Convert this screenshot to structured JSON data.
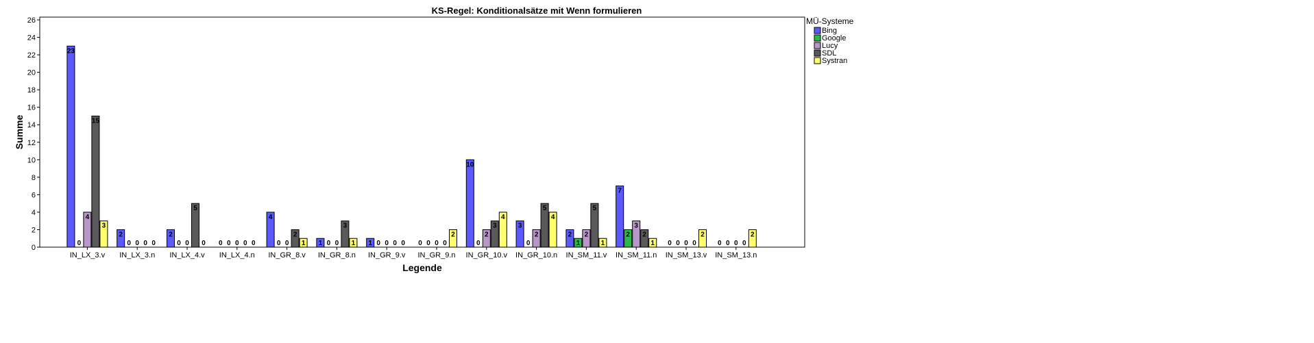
{
  "chart_data": {
    "type": "bar",
    "title": "KS-Regel: Konditionalsätze mit Wenn formulieren",
    "xlabel": "Legende",
    "ylabel": "Summe",
    "ylim": [
      0,
      26
    ],
    "yticks": [
      0,
      2,
      4,
      6,
      8,
      10,
      12,
      14,
      16,
      18,
      20,
      22,
      24,
      26
    ],
    "grid": false,
    "legend_title": "MÜ-Systeme",
    "legend_position": "right",
    "categories": [
      "IN_LX_3.v",
      "IN_LX_3.n",
      "IN_LX_4.v",
      "IN_LX_4.n",
      "IN_GR_8.v",
      "IN_GR_8.n",
      "IN_GR_9.v",
      "IN_GR_9.n",
      "IN_GR_10.v",
      "IN_GR_10.n",
      "IN_SM_11.v",
      "IN_SM_11.n",
      "IN_SM_13.v",
      "IN_SM_13.n"
    ],
    "series": [
      {
        "name": "Bing",
        "color": "#5a5aff",
        "values": [
          23,
          2,
          2,
          0,
          4,
          1,
          1,
          0,
          10,
          3,
          2,
          7,
          0,
          0
        ]
      },
      {
        "name": "Google",
        "color": "#2cb84a",
        "values": [
          0,
          0,
          0,
          0,
          0,
          0,
          0,
          0,
          0,
          0,
          1,
          2,
          0,
          0
        ]
      },
      {
        "name": "Lucy",
        "color": "#b896c8",
        "values": [
          4,
          0,
          0,
          0,
          0,
          0,
          0,
          0,
          2,
          2,
          2,
          3,
          0,
          0
        ]
      },
      {
        "name": "SDL",
        "color": "#595959",
        "values": [
          15,
          0,
          5,
          0,
          2,
          3,
          0,
          0,
          3,
          5,
          5,
          2,
          0,
          0
        ]
      },
      {
        "name": "Systran",
        "color": "#ffff6e",
        "values": [
          3,
          0,
          0,
          0,
          1,
          1,
          0,
          2,
          4,
          4,
          1,
          1,
          2,
          2
        ]
      }
    ]
  }
}
